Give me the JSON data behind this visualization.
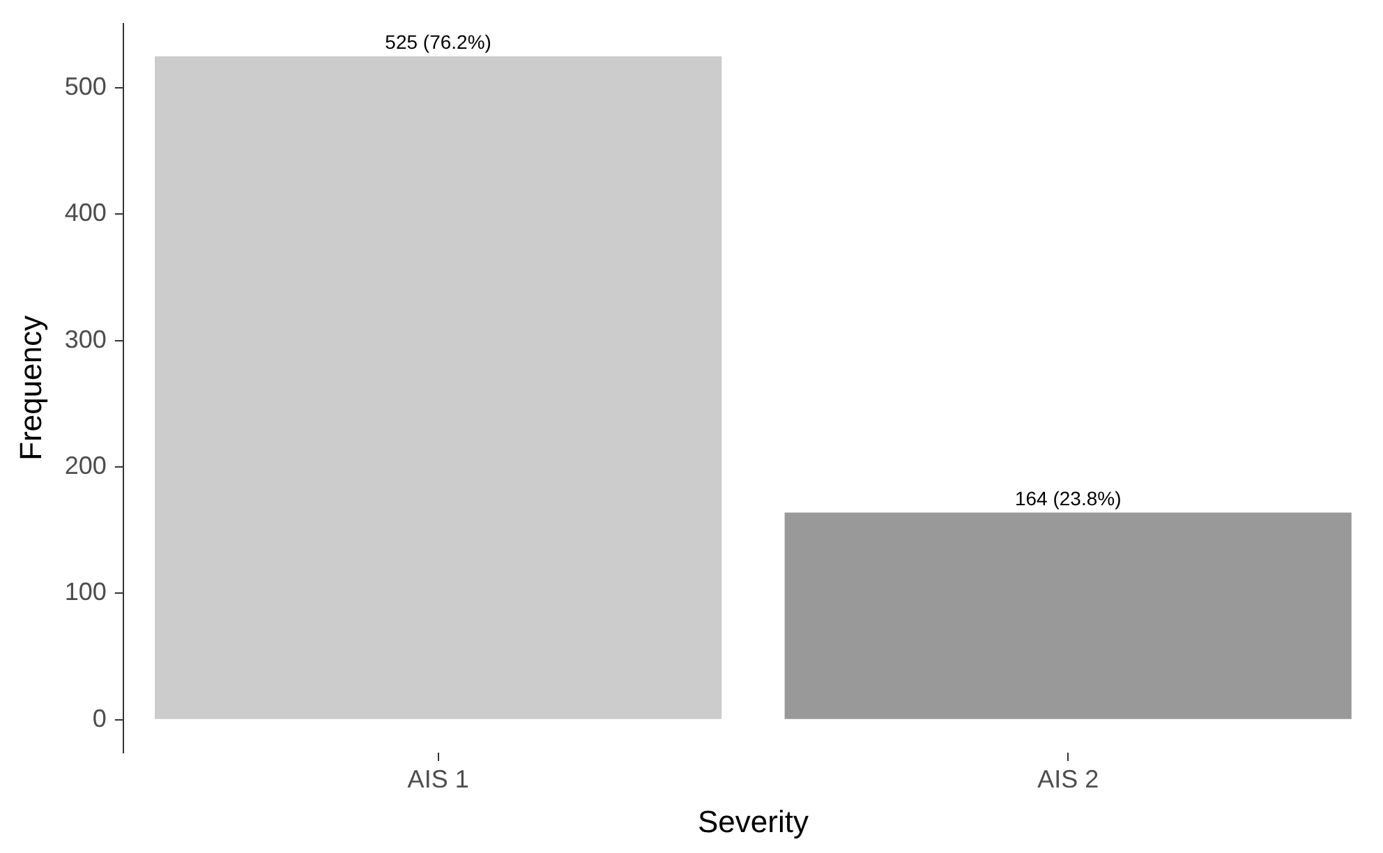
{
  "chart_data": {
    "type": "bar",
    "xlabel": "Severity",
    "ylabel": "Frequency",
    "categories": [
      "AIS 1",
      "AIS 2"
    ],
    "values": [
      525,
      164
    ],
    "colors": [
      "#cccccc",
      "#999999"
    ],
    "value_labels": [
      "525 (76.2%)",
      "164 (23.8%)"
    ],
    "ylim": [
      -26,
      551
    ],
    "yticks": [
      0,
      100,
      200,
      300,
      400,
      500
    ],
    "grid": false,
    "legend": false
  }
}
